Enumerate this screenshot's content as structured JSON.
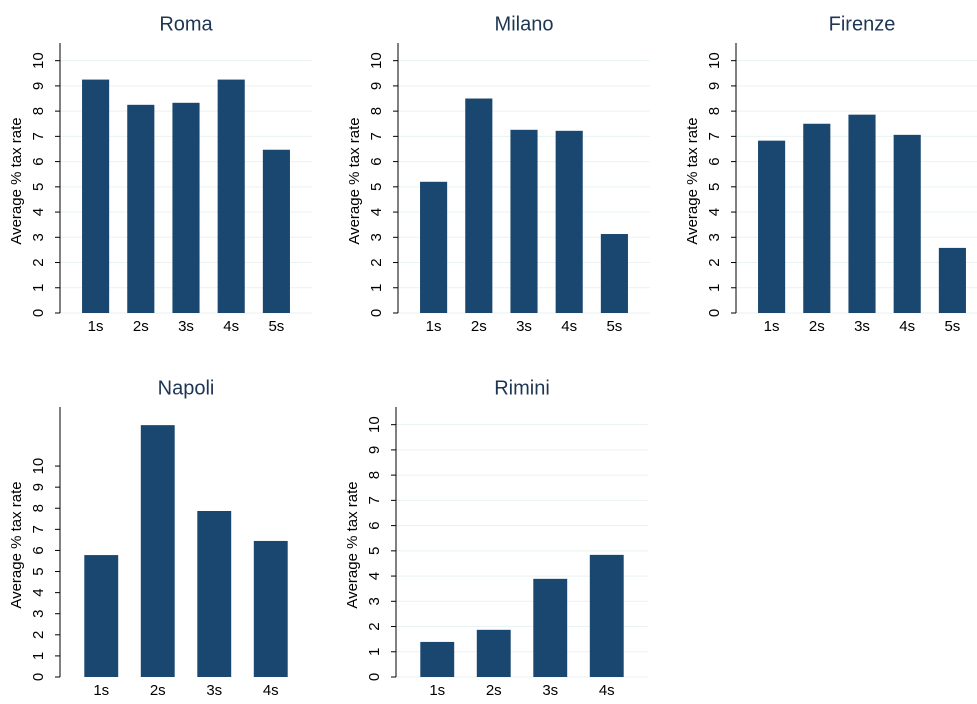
{
  "chart_data": [
    {
      "type": "bar",
      "title": "Roma",
      "y_label": "Average % tax rate",
      "categories": [
        "1s",
        "2s",
        "3s",
        "4s",
        "5s"
      ],
      "values": [
        9.25,
        8.25,
        8.33,
        9.25,
        6.47
      ],
      "ylim": [
        0,
        10.7
      ],
      "yticks": [
        0,
        1,
        2,
        3,
        4,
        5,
        6,
        7,
        8,
        9,
        10
      ],
      "grid": true,
      "color": "#1a476f"
    },
    {
      "type": "bar",
      "title": "Milano",
      "y_label": "Average % tax rate",
      "categories": [
        "1s",
        "2s",
        "3s",
        "4s",
        "5s"
      ],
      "values": [
        5.2,
        8.5,
        7.26,
        7.22,
        3.13
      ],
      "ylim": [
        0,
        10.7
      ],
      "yticks": [
        0,
        1,
        2,
        3,
        4,
        5,
        6,
        7,
        8,
        9,
        10
      ],
      "grid": true,
      "color": "#1a476f"
    },
    {
      "type": "bar",
      "title": "Firenze",
      "y_label": "Average % tax rate",
      "categories": [
        "1s",
        "2s",
        "3s",
        "4s",
        "5s"
      ],
      "values": [
        6.83,
        7.5,
        7.86,
        7.06,
        2.58
      ],
      "ylim": [
        0,
        10.7
      ],
      "yticks": [
        0,
        1,
        2,
        3,
        4,
        5,
        6,
        7,
        8,
        9,
        10
      ],
      "grid": true,
      "color": "#1a476f"
    },
    {
      "type": "bar",
      "title": "Napoli",
      "y_label": "Average % tax rate",
      "categories": [
        "1s",
        "2s",
        "3s",
        "4s"
      ],
      "values": [
        5.78,
        11.94,
        7.87,
        6.45
      ],
      "ylim": [
        0,
        12.8
      ],
      "yticks": [
        0,
        1,
        2,
        3,
        4,
        5,
        6,
        7,
        8,
        9,
        10
      ],
      "grid": false,
      "color": "#1a476f"
    },
    {
      "type": "bar",
      "title": "Rimini",
      "y_label": "Average % tax rate",
      "categories": [
        "1s",
        "2s",
        "3s",
        "4s"
      ],
      "values": [
        1.39,
        1.87,
        3.89,
        4.84
      ],
      "ylim": [
        0,
        10.7
      ],
      "yticks": [
        0,
        1,
        2,
        3,
        4,
        5,
        6,
        7,
        8,
        9,
        10
      ],
      "grid": true,
      "color": "#1a476f"
    }
  ]
}
